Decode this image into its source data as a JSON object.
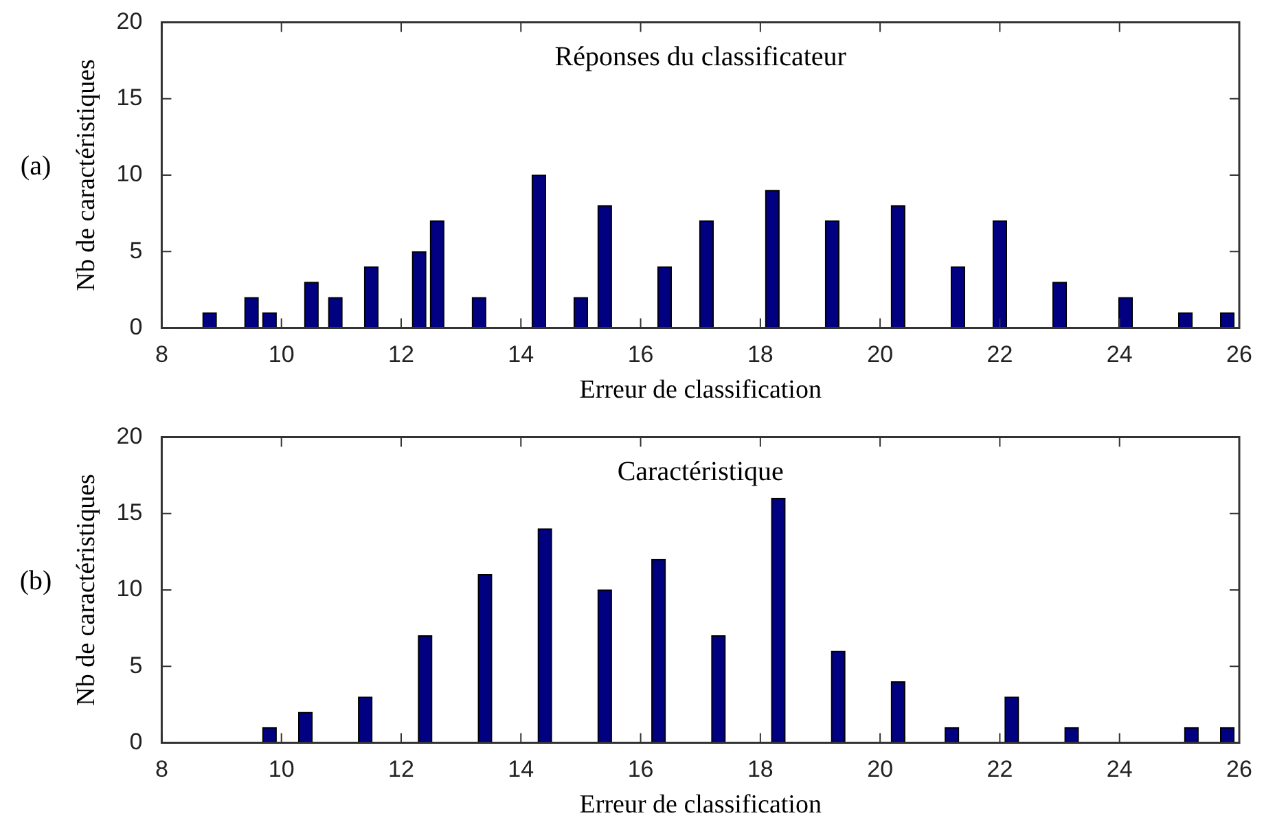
{
  "chart_data": [
    {
      "type": "bar",
      "title": "Réponses du classificateur",
      "xlabel": "Erreur de classification",
      "ylabel": "Nb de caractéristiques",
      "annotations": [
        "(a)"
      ],
      "x": [
        8.8,
        9.5,
        9.8,
        10.5,
        10.9,
        11.5,
        12.3,
        12.6,
        13.3,
        14.3,
        15.0,
        15.4,
        16.4,
        17.1,
        18.2,
        19.2,
        20.3,
        21.3,
        22.0,
        23.0,
        24.1,
        25.1,
        25.8
      ],
      "values": [
        1,
        2,
        1,
        3,
        2,
        4,
        5,
        7,
        2,
        10,
        2,
        8,
        4,
        7,
        9,
        7,
        8,
        4,
        7,
        3,
        2,
        1,
        1
      ],
      "color": "#000080",
      "xlim": [
        8,
        26
      ],
      "xticks": [
        8,
        10,
        12,
        14,
        16,
        18,
        20,
        22,
        24,
        26
      ],
      "ylim": [
        0,
        20
      ],
      "yticks": [
        0,
        5,
        10,
        15,
        20
      ]
    },
    {
      "type": "bar",
      "title": "Caractéristique",
      "xlabel": "Erreur de classification",
      "ylabel": "Nb de caractéristiques",
      "annotations": [
        "(b)"
      ],
      "x": [
        9.8,
        10.4,
        11.4,
        12.4,
        13.4,
        14.4,
        15.4,
        16.3,
        17.3,
        18.3,
        19.3,
        20.3,
        21.2,
        22.2,
        23.2,
        25.2,
        25.8
      ],
      "values": [
        1,
        2,
        3,
        7,
        11,
        14,
        10,
        12,
        7,
        16,
        6,
        4,
        1,
        3,
        1,
        1,
        1
      ],
      "color": "#000080",
      "xlim": [
        8,
        26
      ],
      "xticks": [
        8,
        10,
        12,
        14,
        16,
        18,
        20,
        22,
        24,
        26
      ],
      "ylim": [
        0,
        20
      ],
      "yticks": [
        0,
        5,
        10,
        15,
        20
      ]
    }
  ]
}
